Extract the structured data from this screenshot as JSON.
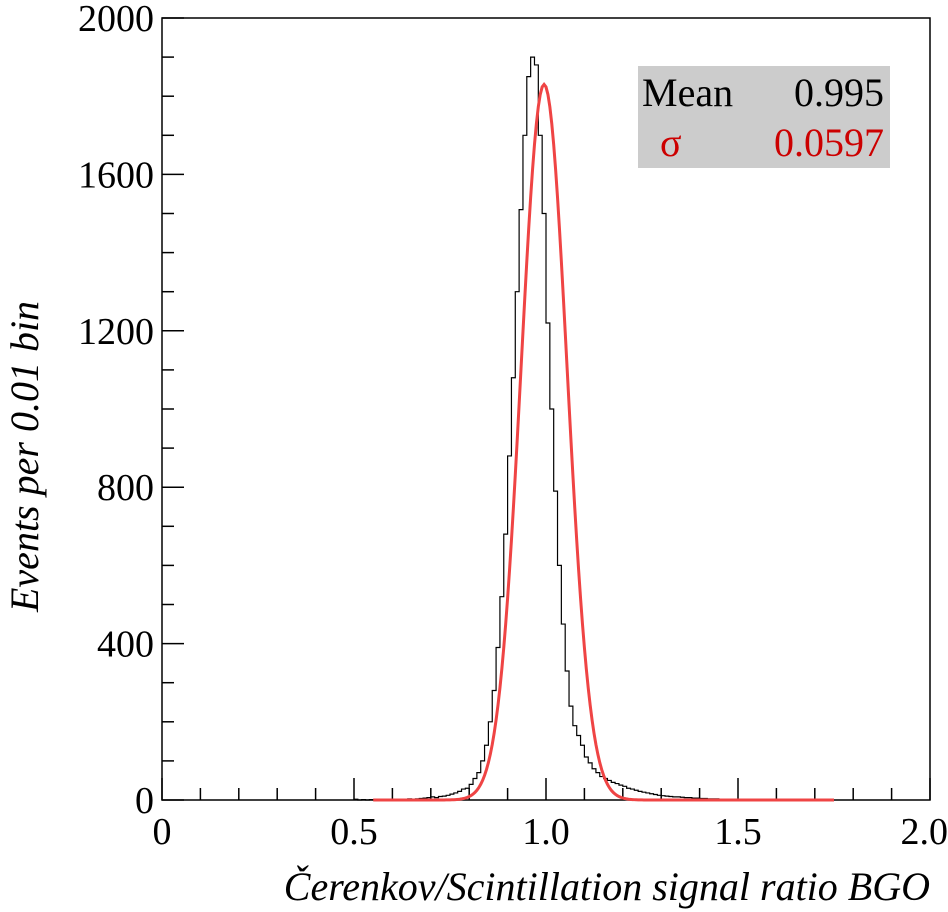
{
  "chart_data": {
    "type": "histogram",
    "xlabel": "Čerenkov/Scintillation signal ratio BGO",
    "ylabel": "Events per 0.01 bin",
    "xlim": [
      0,
      2.0
    ],
    "ylim": [
      0,
      2000
    ],
    "x_ticks": [
      0,
      0.5,
      1.0,
      1.5,
      2.0
    ],
    "x_tick_labels": [
      "0",
      "0.5",
      "1.0",
      "1.5",
      "2.0"
    ],
    "y_ticks": [
      0,
      400,
      800,
      1200,
      1600,
      2000
    ],
    "y_tick_labels": [
      "0",
      "400",
      "800",
      "1200",
      "1600",
      "2000"
    ],
    "bin_width": 0.01,
    "histogram": {
      "bin_edges_start": 0.5,
      "counts": [
        2,
        0,
        1,
        0,
        1,
        0,
        2,
        1,
        0,
        1,
        1,
        2,
        1,
        2,
        3,
        2,
        3,
        4,
        5,
        6,
        8,
        6,
        9,
        10,
        12,
        15,
        18,
        22,
        28,
        30,
        40,
        55,
        70,
        100,
        140,
        200,
        280,
        390,
        520,
        680,
        880,
        1080,
        1300,
        1510,
        1700,
        1850,
        1900,
        1880,
        1700,
        1500,
        1220,
        1000,
        790,
        600,
        450,
        330,
        240,
        190,
        165,
        140,
        110,
        95,
        80,
        70,
        60,
        55,
        50,
        45,
        42,
        38,
        35,
        30,
        28,
        25,
        22,
        20,
        18,
        16,
        14,
        12,
        11,
        10,
        9,
        8,
        8,
        7,
        6,
        6,
        5,
        5,
        4,
        4,
        3,
        3,
        3,
        2,
        2,
        2,
        2,
        1,
        1,
        1,
        1,
        1,
        1,
        1,
        0,
        1,
        0,
        1,
        0,
        1,
        0,
        0,
        1,
        0,
        0,
        1,
        0,
        0
      ],
      "color": "#000000"
    },
    "fit": {
      "mean": 0.995,
      "sigma": 0.0597,
      "amplitude": 1830,
      "x_range": [
        0.55,
        1.75
      ],
      "color": "#ef4444"
    },
    "stats_box": {
      "mean_label": "Mean",
      "mean_value": "0.995",
      "sigma_label": "σ",
      "sigma_value": "0.0597",
      "background": "#cccccc",
      "mean_color": "#000000",
      "sigma_color": "#cc0000",
      "placement": "top-right"
    }
  }
}
